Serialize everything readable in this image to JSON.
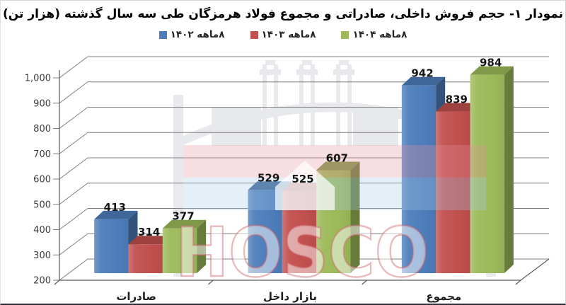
{
  "title": "نمودار ۱- حجم فروش داخلی، صادراتی و مجموع فولاد هرمزگان طی سه سال گذشته (هزار تن)",
  "legend": {
    "items": [
      {
        "label": "۸ماهه ۱۴۰۲",
        "color": "#4D7DBB"
      },
      {
        "label": "۸ماهه ۱۴۰۳",
        "color": "#C1504E"
      },
      {
        "label": "۸ماهه ۱۴۰۴",
        "color": "#9CBA59"
      }
    ]
  },
  "watermark": {
    "text": "HOSCO"
  },
  "chart_data": {
    "type": "bar",
    "style": "3d-clustered-column",
    "title": "نمودار ۱- حجم فروش داخلی، صادراتی و مجموع فولاد هرمزگان طی سه سال گذشته (هزار تن)",
    "categories": [
      "صادرات",
      "بازار داخل",
      "مجموع"
    ],
    "series": [
      {
        "name": "۸ماهه ۱۴۰۲",
        "color": "#4D7DBB",
        "values": [
          413,
          529,
          942
        ]
      },
      {
        "name": "۸ماهه ۱۴۰۳",
        "color": "#C1504E",
        "values": [
          314,
          525,
          839
        ]
      },
      {
        "name": "۸ماهه ۱۴۰۴",
        "color": "#9CBA59",
        "values": [
          377,
          607,
          984
        ]
      }
    ],
    "ylim": [
      200,
      1000
    ],
    "y_step": 100,
    "y_ticks": [
      "200",
      "300",
      "400",
      "500",
      "600",
      "700",
      "800",
      "900",
      "1,000"
    ],
    "grid": true,
    "legend_position": "top",
    "unit": "هزار تن"
  }
}
